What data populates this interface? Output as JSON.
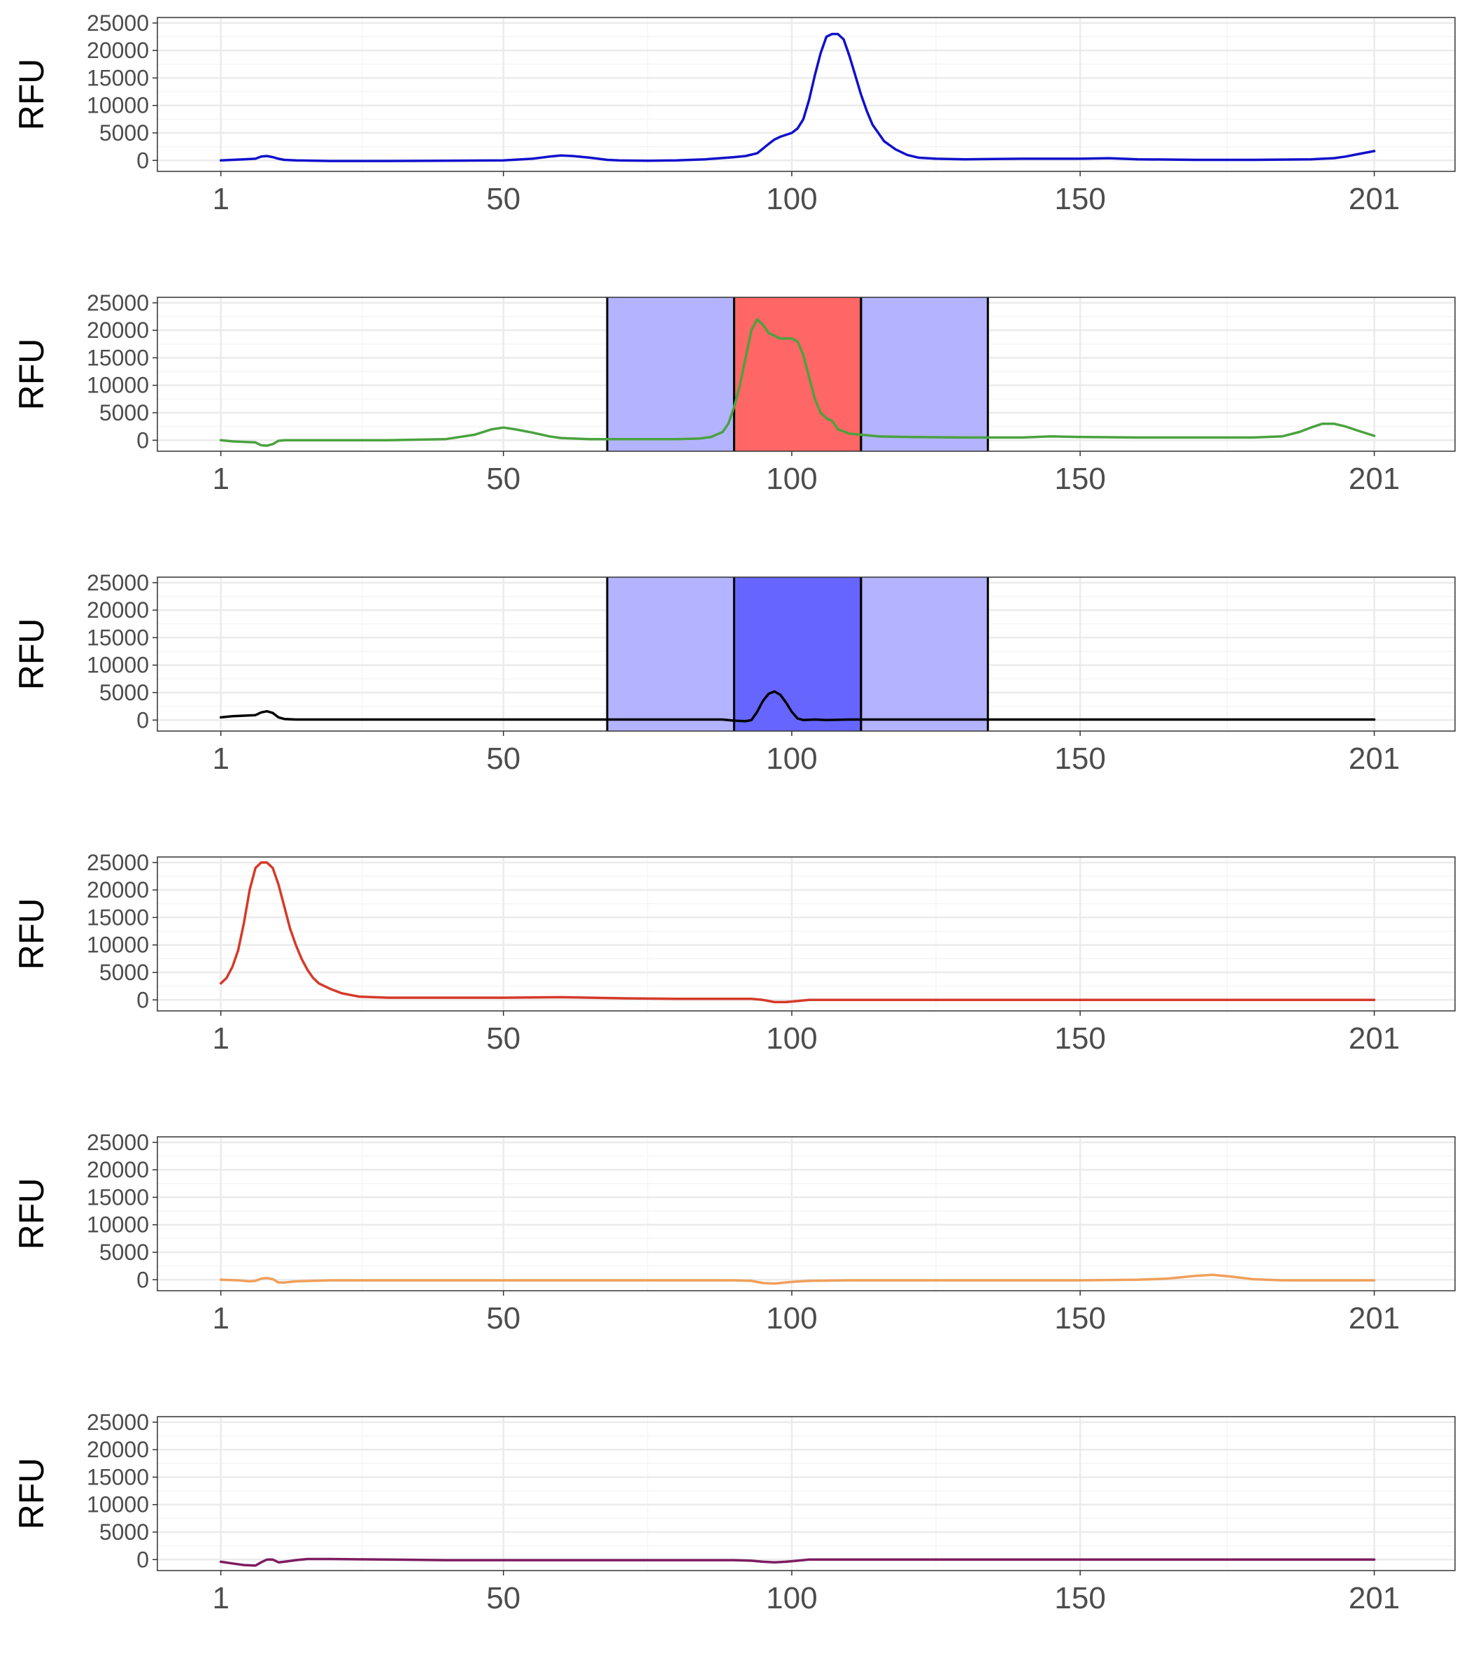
{
  "colors": {
    "grid_major": "#ebebeb",
    "grid_minor": "#f5f5f5",
    "panel_border": "#333333",
    "tick_text": "#4d4d4d",
    "region_flank": "#b3b3ff",
    "region_center_red": "#ff6666",
    "region_center_blue": "#6666ff"
  },
  "chart_data": [
    {
      "type": "line",
      "xlabel": "",
      "ylabel": "RFU",
      "xlim": [
        -10,
        215
      ],
      "ylim": [
        -2000,
        26000
      ],
      "xticks": [
        1,
        50,
        100,
        150,
        201
      ],
      "yticks": [
        0,
        5000,
        10000,
        15000,
        20000,
        25000
      ],
      "grid": true,
      "regions": [],
      "series": [
        {
          "color": "#1111cc",
          "x": [
            1,
            3,
            5,
            7,
            8,
            9,
            10,
            11,
            12,
            14,
            20,
            30,
            40,
            50,
            55,
            58,
            60,
            62,
            65,
            68,
            70,
            75,
            80,
            85,
            90,
            92,
            94,
            96,
            97,
            98,
            100,
            101,
            102,
            103,
            104,
            105,
            106,
            107,
            108,
            109,
            110,
            111,
            112,
            113,
            114,
            115,
            116,
            118,
            120,
            122,
            125,
            130,
            140,
            150,
            155,
            160,
            170,
            180,
            190,
            194,
            196,
            198,
            200,
            201
          ],
          "y": [
            0,
            100,
            200,
            300,
            700,
            800,
            600,
            300,
            100,
            0,
            -100,
            -100,
            -50,
            0,
            300,
            700,
            900,
            800,
            500,
            100,
            0,
            -50,
            0,
            200,
            600,
            800,
            1300,
            3000,
            3800,
            4300,
            5000,
            5800,
            7500,
            11000,
            15500,
            19500,
            22500,
            23000,
            23000,
            22000,
            19000,
            15500,
            12000,
            9000,
            6500,
            5000,
            3500,
            2000,
            1000,
            500,
            300,
            200,
            300,
            300,
            400,
            200,
            100,
            100,
            200,
            400,
            700,
            1100,
            1500,
            1700
          ]
        }
      ]
    },
    {
      "type": "line",
      "xlabel": "",
      "ylabel": "RFU",
      "xlim": [
        -10,
        215
      ],
      "ylim": [
        -2000,
        26000
      ],
      "xticks": [
        1,
        50,
        100,
        150,
        201
      ],
      "yticks": [
        0,
        5000,
        10000,
        15000,
        20000,
        25000
      ],
      "grid": true,
      "regions": [
        {
          "start": 68,
          "end": 90,
          "fill": "flank"
        },
        {
          "start": 90,
          "end": 112,
          "fill": "center_red"
        },
        {
          "start": 112,
          "end": 134,
          "fill": "flank"
        }
      ],
      "series": [
        {
          "color": "#4aa23f",
          "x": [
            1,
            3,
            5,
            7,
            8,
            9,
            10,
            11,
            12,
            14,
            20,
            30,
            40,
            45,
            48,
            50,
            52,
            55,
            58,
            60,
            65,
            70,
            75,
            80,
            84,
            86,
            88,
            89,
            90,
            91,
            92,
            93,
            94,
            95,
            96,
            97,
            98,
            100,
            101,
            102,
            103,
            104,
            105,
            106,
            107,
            108,
            110,
            112,
            115,
            120,
            130,
            140,
            145,
            150,
            160,
            170,
            180,
            185,
            188,
            190,
            192,
            194,
            196,
            198,
            201
          ],
          "y": [
            0,
            -200,
            -300,
            -400,
            -900,
            -1000,
            -700,
            -100,
            0,
            0,
            0,
            0,
            200,
            1000,
            2000,
            2300,
            2000,
            1400,
            700,
            400,
            200,
            200,
            200,
            200,
            300,
            600,
            1500,
            3000,
            6000,
            10000,
            15000,
            20000,
            22000,
            21000,
            19500,
            19000,
            18500,
            18500,
            18000,
            15500,
            11500,
            7500,
            5000,
            4000,
            3500,
            2000,
            1200,
            1000,
            700,
            600,
            500,
            500,
            700,
            600,
            500,
            500,
            500,
            700,
            1500,
            2300,
            3000,
            3000,
            2500,
            1800,
            800
          ]
        }
      ]
    },
    {
      "type": "line",
      "xlabel": "",
      "ylabel": "RFU",
      "xlim": [
        -10,
        215
      ],
      "ylim": [
        -2000,
        26000
      ],
      "xticks": [
        1,
        50,
        100,
        150,
        201
      ],
      "yticks": [
        0,
        5000,
        10000,
        15000,
        20000,
        25000
      ],
      "grid": true,
      "regions": [
        {
          "start": 68,
          "end": 90,
          "fill": "flank"
        },
        {
          "start": 90,
          "end": 112,
          "fill": "center_blue"
        },
        {
          "start": 112,
          "end": 134,
          "fill": "flank"
        }
      ],
      "series": [
        {
          "color": "#000000",
          "x": [
            1,
            3,
            5,
            7,
            8,
            9,
            10,
            11,
            12,
            14,
            20,
            40,
            60,
            80,
            88,
            90,
            92,
            93,
            94,
            95,
            96,
            97,
            98,
            99,
            100,
            101,
            102,
            104,
            106,
            110,
            120,
            140,
            160,
            180,
            201
          ],
          "y": [
            500,
            700,
            800,
            900,
            1400,
            1600,
            1300,
            500,
            200,
            100,
            100,
            100,
            100,
            100,
            100,
            -100,
            -200,
            0,
            1500,
            3500,
            4800,
            5200,
            4600,
            3200,
            1500,
            300,
            0,
            100,
            0,
            100,
            100,
            100,
            100,
            100,
            100
          ]
        }
      ]
    },
    {
      "type": "line",
      "xlabel": "",
      "ylabel": "RFU",
      "xlim": [
        -10,
        215
      ],
      "ylim": [
        -2000,
        26000
      ],
      "xticks": [
        1,
        50,
        100,
        150,
        201
      ],
      "yticks": [
        0,
        5000,
        10000,
        15000,
        20000,
        25000
      ],
      "grid": true,
      "regions": [],
      "series": [
        {
          "color": "#d53a2a",
          "x": [
            1,
            2,
            3,
            4,
            5,
            6,
            7,
            8,
            9,
            10,
            11,
            12,
            13,
            14,
            15,
            16,
            17,
            18,
            20,
            22,
            25,
            30,
            40,
            50,
            60,
            70,
            80,
            90,
            93,
            95,
            97,
            99,
            101,
            103,
            110,
            120,
            150,
            180,
            201
          ],
          "y": [
            3000,
            4000,
            6000,
            9000,
            14000,
            20000,
            24000,
            25000,
            25000,
            24000,
            21000,
            17000,
            13000,
            10000,
            7500,
            5500,
            4000,
            3000,
            2000,
            1200,
            600,
            400,
            400,
            400,
            500,
            300,
            200,
            200,
            200,
            0,
            -400,
            -400,
            -200,
            0,
            0,
            0,
            0,
            0,
            0
          ]
        }
      ]
    },
    {
      "type": "line",
      "xlabel": "",
      "ylabel": "RFU",
      "xlim": [
        -10,
        215
      ],
      "ylim": [
        -2000,
        26000
      ],
      "xticks": [
        1,
        50,
        100,
        150,
        201
      ],
      "yticks": [
        0,
        5000,
        10000,
        15000,
        20000,
        25000
      ],
      "grid": true,
      "regions": [],
      "series": [
        {
          "color": "#efa05a",
          "x": [
            1,
            4,
            6,
            7,
            8,
            9,
            10,
            11,
            12,
            14,
            20,
            40,
            60,
            80,
            90,
            93,
            95,
            97,
            100,
            103,
            110,
            130,
            150,
            160,
            165,
            170,
            173,
            176,
            180,
            185,
            201
          ],
          "y": [
            0,
            -100,
            -300,
            -200,
            200,
            300,
            100,
            -500,
            -500,
            -300,
            -100,
            -100,
            -100,
            -100,
            -100,
            -200,
            -600,
            -700,
            -400,
            -200,
            -100,
            -100,
            -100,
            0,
            200,
            700,
            900,
            600,
            100,
            -100,
            -100
          ]
        }
      ]
    },
    {
      "type": "line",
      "xlabel": "",
      "ylabel": "RFU",
      "xlim": [
        -10,
        215
      ],
      "ylim": [
        -2000,
        26000
      ],
      "xticks": [
        1,
        50,
        100,
        150,
        201
      ],
      "yticks": [
        0,
        5000,
        10000,
        15000,
        20000,
        25000
      ],
      "grid": true,
      "regions": [],
      "series": [
        {
          "color": "#7d1d61",
          "x": [
            1,
            3,
            5,
            7,
            8,
            9,
            10,
            11,
            12,
            14,
            16,
            18,
            20,
            30,
            40,
            50,
            70,
            90,
            93,
            95,
            97,
            99,
            101,
            103,
            110,
            130,
            160,
            190,
            201
          ],
          "y": [
            -400,
            -700,
            -1000,
            -1100,
            -500,
            0,
            0,
            -500,
            -400,
            -100,
            100,
            100,
            100,
            0,
            -100,
            -100,
            -100,
            -100,
            -200,
            -400,
            -500,
            -400,
            -200,
            0,
            0,
            0,
            0,
            0,
            0
          ]
        }
      ]
    }
  ]
}
